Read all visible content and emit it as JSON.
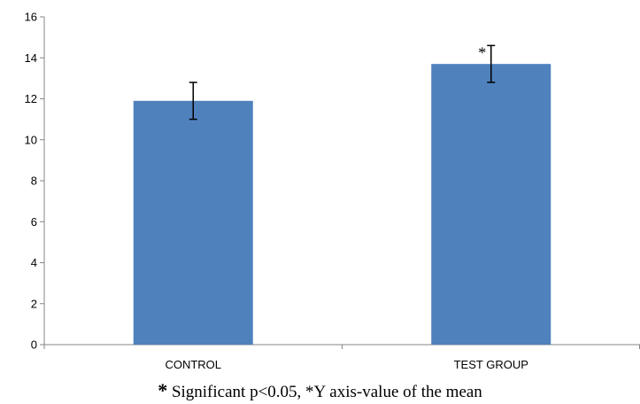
{
  "chart_data": {
    "type": "bar",
    "categories": [
      "CONTROL",
      "TEST GROUP"
    ],
    "values": [
      11.9,
      13.7
    ],
    "error": [
      0.9,
      0.9
    ],
    "annotations": [
      {
        "category": "TEST GROUP",
        "text": "*"
      }
    ],
    "ylim": [
      0,
      16
    ],
    "yticks": [
      0,
      2,
      4,
      6,
      8,
      10,
      12,
      14,
      16
    ],
    "bar_color": "#4f81bd",
    "grid": false,
    "legend": "none"
  },
  "caption": {
    "star": "*",
    "text": " Significant p<0.05, *Y axis-value of the mean"
  }
}
